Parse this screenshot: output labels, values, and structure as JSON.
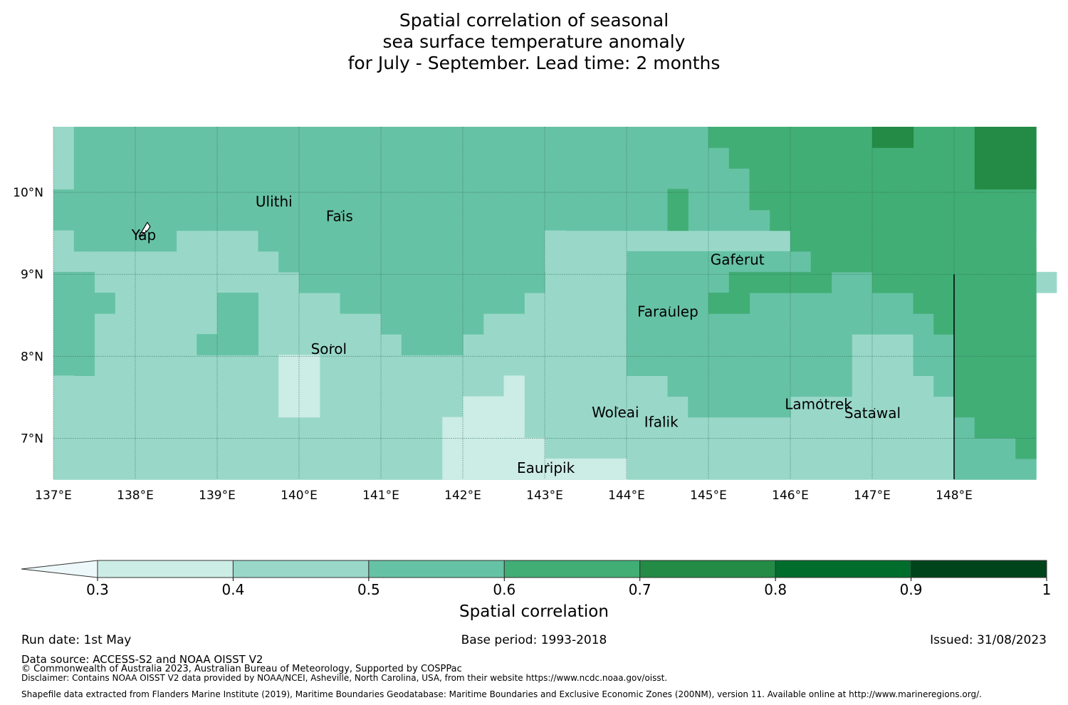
{
  "title": {
    "line1": "Spatial correlation of seasonal",
    "line2": "sea surface temperature anomaly",
    "line3": "for July - September. Lead time: 2 months"
  },
  "map": {
    "lon_range": [
      137,
      149
    ],
    "lat_range": [
      6.5,
      10.8
    ],
    "lon_ticks": [
      {
        "value": 137,
        "label": "137°E"
      },
      {
        "value": 138,
        "label": "138°E"
      },
      {
        "value": 139,
        "label": "139°E"
      },
      {
        "value": 140,
        "label": "140°E"
      },
      {
        "value": 141,
        "label": "141°E"
      },
      {
        "value": 142,
        "label": "142°E"
      },
      {
        "value": 143,
        "label": "143°E"
      },
      {
        "value": 144,
        "label": "144°E"
      },
      {
        "value": 145,
        "label": "145°E"
      },
      {
        "value": 146,
        "label": "146°E"
      },
      {
        "value": 147,
        "label": "147°E"
      },
      {
        "value": 148,
        "label": "148°E"
      }
    ],
    "lat_ticks": [
      {
        "value": 10,
        "label": "10°N"
      },
      {
        "value": 9,
        "label": "9°N"
      },
      {
        "value": 8,
        "label": "8°N"
      },
      {
        "value": 7,
        "label": "7°N"
      }
    ],
    "places": [
      {
        "name": "Ulithi",
        "lon": 139.72,
        "lat": 9.94
      },
      {
        "name": "Fais",
        "lon": 140.52,
        "lat": 9.76
      },
      {
        "name": "Yap",
        "lon": 138.13,
        "lat": 9.53
      },
      {
        "name": "Gaferut",
        "lon": 145.38,
        "lat": 9.23
      },
      {
        "name": "Faraulep",
        "lon": 144.53,
        "lat": 8.6
      },
      {
        "name": "Sorol",
        "lon": 140.39,
        "lat": 8.14
      },
      {
        "name": "Woleai",
        "lon": 143.89,
        "lat": 7.37
      },
      {
        "name": "Ifalik",
        "lon": 144.45,
        "lat": 7.25
      },
      {
        "name": "Lamotrek",
        "lon": 146.37,
        "lat": 7.47
      },
      {
        "name": "Satawal",
        "lon": 147.03,
        "lat": 7.36
      },
      {
        "name": "Eauripik",
        "lon": 143.04,
        "lat": 6.69
      }
    ],
    "eez_boundary_lon": 148.0,
    "eez_boundary_lat_range": [
      6.5,
      9.0
    ]
  },
  "colorbar": {
    "label": "Spatial correlation",
    "ticks": [
      "0.3",
      "0.4",
      "0.5",
      "0.6",
      "0.7",
      "0.8",
      "0.9",
      "1"
    ],
    "colors": [
      "#edf8fb",
      "#ccece6",
      "#99d8c9",
      "#66c2a4",
      "#41ae76",
      "#238b45",
      "#006d2c",
      "#00441b"
    ]
  },
  "footer": {
    "run_date": "Run date: 1st May",
    "base_period": "Base period: 1993-2018",
    "issued": "Issued: 31/08/2023",
    "data_source": "Data source: ACCESS-S2 and NOAA OISST V2",
    "copyright": "© Commonwealth of Australia 2023, Australian Bureau of Meteorology, Supported by COSPPac",
    "disclaimer": "Disclaimer: Contains NOAA OISST V2 data provided by NOAA/NCEI, Asheville, North Carolina, USA, from their website https://www.ncdc.noaa.gov/oisst.",
    "shapefile": "Shapefile data extracted from Flanders Marine Institute (2019), Maritime Boundaries Geodatabase: Maritime Boundaries and Exclusive Economic Zones (200NM), version 11. Available online at http://www.marineregions.org/."
  }
}
